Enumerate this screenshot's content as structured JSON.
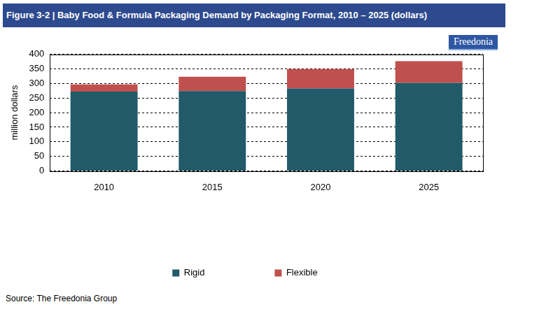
{
  "chart_data": {
    "type": "bar",
    "title": "Figure 3-2 | Baby Food & Formula Packaging Demand by Packaging Format, 2010 – 2025 (dollars)",
    "logo": "Freedonia",
    "source": "Source: The Freedonia Group",
    "y_label": "million dollars",
    "categories": [
      "2010",
      "2015",
      "2020",
      "2025"
    ],
    "series": [
      {
        "name": "Rigid",
        "color": "#215a69",
        "values": [
          272,
          274,
          283,
          302
        ]
      },
      {
        "name": "Flexible",
        "color": "#c0504d",
        "values": [
          25,
          49,
          67,
          75
        ]
      }
    ],
    "stacked": true,
    "ylim": [
      0,
      400
    ],
    "yticks": [
      0,
      50,
      100,
      150,
      200,
      250,
      300,
      350,
      400
    ],
    "grid": true,
    "legend": "bottom"
  }
}
